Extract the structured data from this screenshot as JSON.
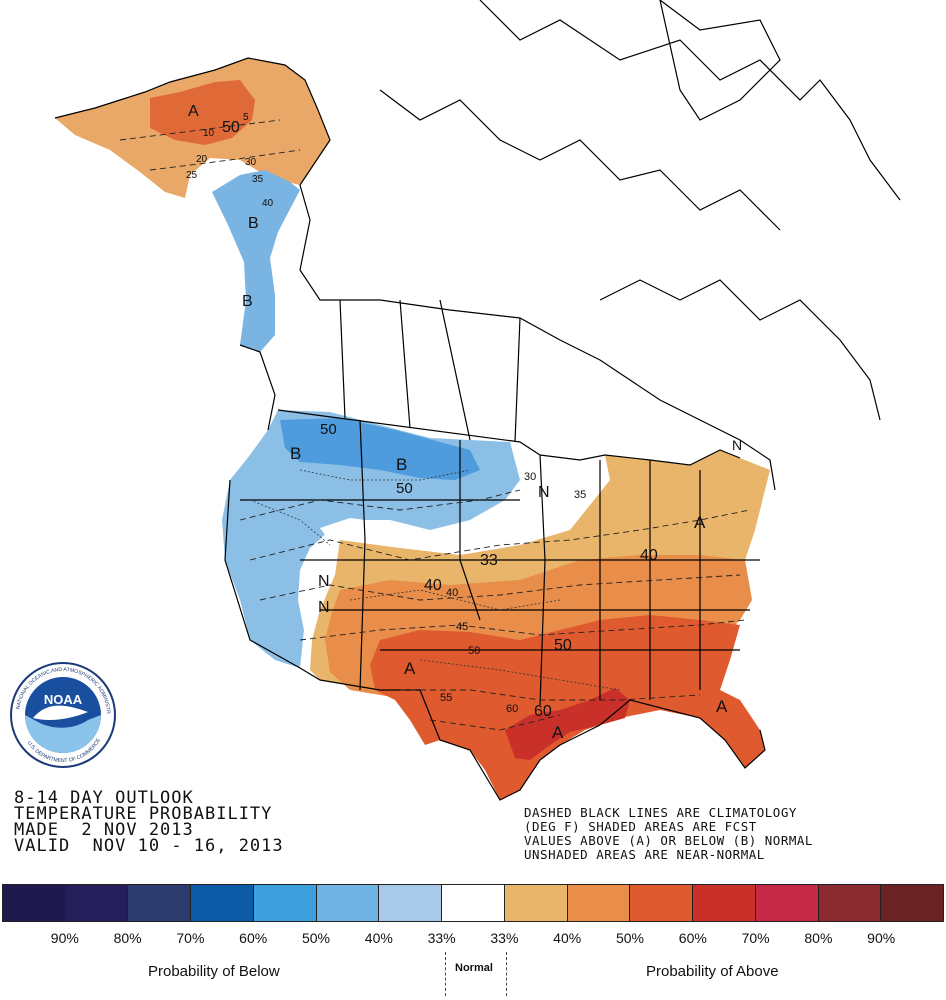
{
  "title": {
    "line1": "8-14 DAY OUTLOOK",
    "line2": "TEMPERATURE PROBABILITY",
    "line3": "MADE  2 NOV 2013",
    "line4": "VALID  NOV 10 - 16, 2013"
  },
  "notes": {
    "line1": "DASHED BLACK LINES ARE CLIMATOLOGY",
    "line2": "(DEG F) SHADED AREAS ARE FCST",
    "line3": "VALUES ABOVE (A) OR BELOW (B) NORMAL",
    "line4": "UNSHADED AREAS ARE NEAR-NORMAL"
  },
  "logo": {
    "ring_text": "NATIONAL OCEANIC AND ATMOSPHERIC ADMINISTRATION",
    "dept_text": "U.S. DEPARTMENT OF COMMERCE",
    "center_text": "NOAA"
  },
  "legend": {
    "colors": [
      "#1f1a4d",
      "#241e5a",
      "#2d3a6e",
      "#0d5aa7",
      "#3da0dc",
      "#6fb2e4",
      "#a9c9e8",
      "#ffffff",
      "#e9b56a",
      "#e88d4a",
      "#df5a2e",
      "#c9302a",
      "#c42a45",
      "#8b2a30",
      "#6b2224"
    ],
    "ticks": [
      "90%",
      "80%",
      "70%",
      "60%",
      "50%",
      "40%",
      "33%",
      "33%",
      "40%",
      "50%",
      "60%",
      "70%",
      "80%",
      "90%"
    ],
    "below_label": "Probability of Below",
    "normal_label": "Normal",
    "above_label": "Probability of Above"
  },
  "map_labels": {
    "alaska_A": "A",
    "alaska_10": "10",
    "alaska_50": "50",
    "alaska_5": "5",
    "alaska_20": "20",
    "alaska_25": "25",
    "alaska_30": "30",
    "alaska_35": "35",
    "alaska_40": "40",
    "alaska_B1": "B",
    "alaska_B2": "B",
    "nw_B": "B",
    "nw_50": "50",
    "mt_B": "B",
    "mt_50": "50",
    "wc_N1": "N",
    "wc_N2": "N",
    "gl_N": "N",
    "gl_30": "30",
    "gl_35": "35",
    "ne_N": "N",
    "ne_A": "A",
    "plains_33": "33",
    "plains_40": "40",
    "plains_40b": "40",
    "east_40": "40",
    "tx_A": "A",
    "tx_45": "45",
    "tx_50": "50",
    "tx_55": "55",
    "se_50": "50",
    "gulf_60": "60",
    "gulf_60b": "60",
    "gulf_A": "A",
    "fl_A": "A"
  }
}
